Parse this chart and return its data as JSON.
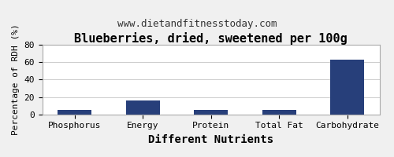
{
  "title": "Blueberries, dried, sweetened per 100g",
  "subtitle": "www.dietandfitnesstoday.com",
  "xlabel": "Different Nutrients",
  "ylabel": "Percentage of RDH (%)",
  "categories": [
    "Phosphorus",
    "Energy",
    "Protein",
    "Total Fat",
    "Carbohydrate"
  ],
  "values": [
    5,
    16,
    5,
    5,
    63
  ],
  "bar_color": "#273f7a",
  "ylim": [
    0,
    80
  ],
  "yticks": [
    0,
    20,
    40,
    60,
    80
  ],
  "background_color": "#f0f0f0",
  "plot_bg_color": "#ffffff",
  "title_fontsize": 11,
  "subtitle_fontsize": 9,
  "xlabel_fontsize": 10,
  "ylabel_fontsize": 8,
  "tick_fontsize": 8,
  "border_color": "#aaaaaa"
}
